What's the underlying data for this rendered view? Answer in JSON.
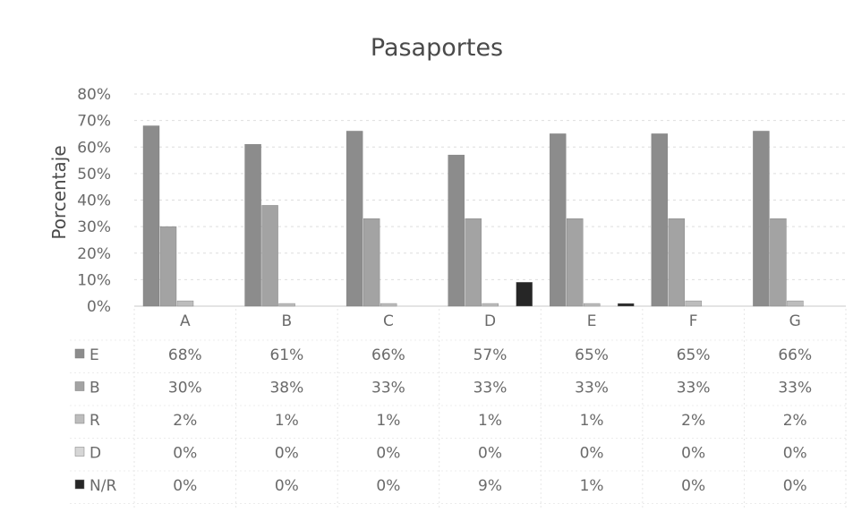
{
  "chart_data": {
    "type": "bar",
    "title": "Pasaportes",
    "xlabel": "",
    "ylabel": "Porcentaje",
    "ylim": [
      0,
      80
    ],
    "yticks": [
      "0%",
      "10%",
      "20%",
      "30%",
      "40%",
      "50%",
      "60%",
      "70%",
      "80%"
    ],
    "categories": [
      "A",
      "B",
      "C",
      "D",
      "E",
      "F",
      "G"
    ],
    "grid": true,
    "legend": "data-table-left",
    "series": [
      {
        "name": "E",
        "color": "#8c8c8c",
        "values": [
          68,
          61,
          66,
          57,
          65,
          65,
          66
        ],
        "labels": [
          "68%",
          "61%",
          "66%",
          "57%",
          "65%",
          "65%",
          "66%"
        ]
      },
      {
        "name": "B",
        "color": "#a3a3a3",
        "values": [
          30,
          38,
          33,
          33,
          33,
          33,
          33
        ],
        "labels": [
          "30%",
          "38%",
          "33%",
          "33%",
          "33%",
          "33%",
          "33%"
        ]
      },
      {
        "name": "R",
        "color": "#bdbdbd",
        "values": [
          2,
          1,
          1,
          1,
          1,
          2,
          2
        ],
        "labels": [
          "2%",
          "1%",
          "1%",
          "1%",
          "1%",
          "2%",
          "2%"
        ]
      },
      {
        "name": "D",
        "color": "#d6d6d6",
        "values": [
          0,
          0,
          0,
          0,
          0,
          0,
          0
        ],
        "labels": [
          "0%",
          "0%",
          "0%",
          "0%",
          "0%",
          "0%",
          "0%"
        ]
      },
      {
        "name": "N/R",
        "color": "#262626",
        "values": [
          0,
          0,
          0,
          9,
          1,
          0,
          0
        ],
        "labels": [
          "0%",
          "0%",
          "0%",
          "9%",
          "1%",
          "0%",
          "0%"
        ]
      }
    ]
  }
}
